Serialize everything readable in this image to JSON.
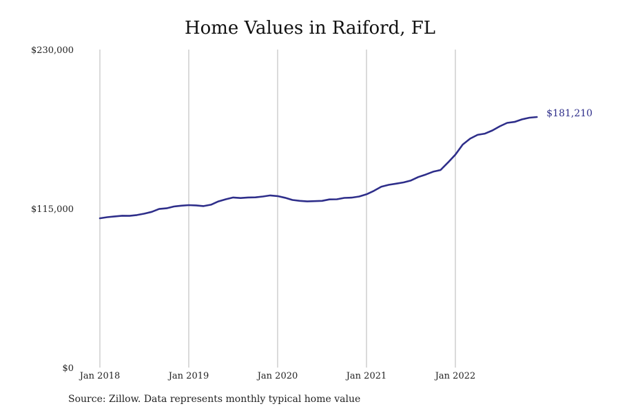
{
  "chart_data": {
    "type": "line",
    "title": "Home Values in Raiford, FL",
    "xlabel": "",
    "ylabel": "",
    "ylim": [
      0,
      230000
    ],
    "y_ticks": [
      {
        "value": 0,
        "label": "$0"
      },
      {
        "value": 115000,
        "label": "$115,000"
      },
      {
        "value": 230000,
        "label": "$230,000"
      }
    ],
    "x_ticks": [
      {
        "value": 2018,
        "label": "Jan 2018"
      },
      {
        "value": 2019,
        "label": "Jan 2019"
      },
      {
        "value": 2020,
        "label": "Jan 2020"
      },
      {
        "value": 2021,
        "label": "Jan 2021"
      },
      {
        "value": 2022,
        "label": "Jan 2022"
      }
    ],
    "grid": {
      "vertical": true,
      "horizontal": false
    },
    "series": [
      {
        "color": "#2e2e8a",
        "end_label": "$181,210",
        "points": [
          [
            "2018-01",
            108000
          ],
          [
            "2018-02",
            108800
          ],
          [
            "2018-03",
            109300
          ],
          [
            "2018-04",
            109800
          ],
          [
            "2018-05",
            109700
          ],
          [
            "2018-06",
            110300
          ],
          [
            "2018-07",
            111300
          ],
          [
            "2018-08",
            112600
          ],
          [
            "2018-09",
            114700
          ],
          [
            "2018-10",
            115200
          ],
          [
            "2018-11",
            116500
          ],
          [
            "2018-12",
            117100
          ],
          [
            "2019-01",
            117500
          ],
          [
            "2019-02",
            117300
          ],
          [
            "2019-03",
            116800
          ],
          [
            "2019-04",
            117800
          ],
          [
            "2019-05",
            120200
          ],
          [
            "2019-06",
            121700
          ],
          [
            "2019-07",
            123000
          ],
          [
            "2019-08",
            122600
          ],
          [
            "2019-09",
            123000
          ],
          [
            "2019-10",
            123100
          ],
          [
            "2019-11",
            123700
          ],
          [
            "2019-12",
            124500
          ],
          [
            "2020-01",
            124000
          ],
          [
            "2020-02",
            122800
          ],
          [
            "2020-03",
            121200
          ],
          [
            "2020-04",
            120600
          ],
          [
            "2020-05",
            120200
          ],
          [
            "2020-06",
            120400
          ],
          [
            "2020-07",
            120600
          ],
          [
            "2020-08",
            121600
          ],
          [
            "2020-09",
            121700
          ],
          [
            "2020-10",
            122700
          ],
          [
            "2020-11",
            122900
          ],
          [
            "2020-12",
            123700
          ],
          [
            "2021-01",
            125300
          ],
          [
            "2021-02",
            127800
          ],
          [
            "2021-03",
            130800
          ],
          [
            "2021-04",
            132200
          ],
          [
            "2021-05",
            133000
          ],
          [
            "2021-06",
            133900
          ],
          [
            "2021-07",
            135300
          ],
          [
            "2021-08",
            137800
          ],
          [
            "2021-09",
            139600
          ],
          [
            "2021-10",
            141700
          ],
          [
            "2021-11",
            142900
          ],
          [
            "2021-12",
            148300
          ],
          [
            "2022-01",
            154000
          ],
          [
            "2022-02",
            161300
          ],
          [
            "2022-03",
            165600
          ],
          [
            "2022-04",
            168300
          ],
          [
            "2022-05",
            169200
          ],
          [
            "2022-06",
            171500
          ],
          [
            "2022-07",
            174500
          ],
          [
            "2022-08",
            177000
          ],
          [
            "2022-09",
            177700
          ],
          [
            "2022-10",
            179500
          ],
          [
            "2022-11",
            180700
          ],
          [
            "2022-12",
            181210
          ]
        ]
      }
    ]
  },
  "source_note": "Source: Zillow. Data represents monthly typical home value"
}
